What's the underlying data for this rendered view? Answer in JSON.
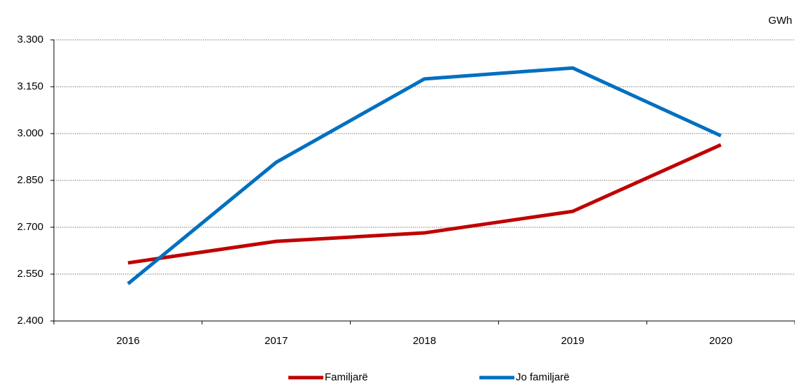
{
  "chart_data": {
    "type": "line",
    "y_label": "GWh",
    "categories": [
      "2016",
      "2017",
      "2018",
      "2019",
      "2020"
    ],
    "series": [
      {
        "name": "Familjarë",
        "color": "#c00000",
        "values": [
          2586,
          2655,
          2682,
          2751,
          2964
        ]
      },
      {
        "name": "Jo familjarë",
        "color": "#0070c0",
        "values": [
          2519,
          2908,
          3175,
          3210,
          2993
        ]
      }
    ],
    "ylim": [
      2400,
      3300
    ],
    "yticks": [
      {
        "value": 2400,
        "label": "2.400"
      },
      {
        "value": 2550,
        "label": "2.550"
      },
      {
        "value": 2700,
        "label": "2.700"
      },
      {
        "value": 2850,
        "label": "2.850"
      },
      {
        "value": 3000,
        "label": "3.000"
      },
      {
        "value": 3150,
        "label": "3.150"
      },
      {
        "value": 3300,
        "label": "3.300"
      }
    ],
    "grid": true,
    "legend": "bottom"
  }
}
